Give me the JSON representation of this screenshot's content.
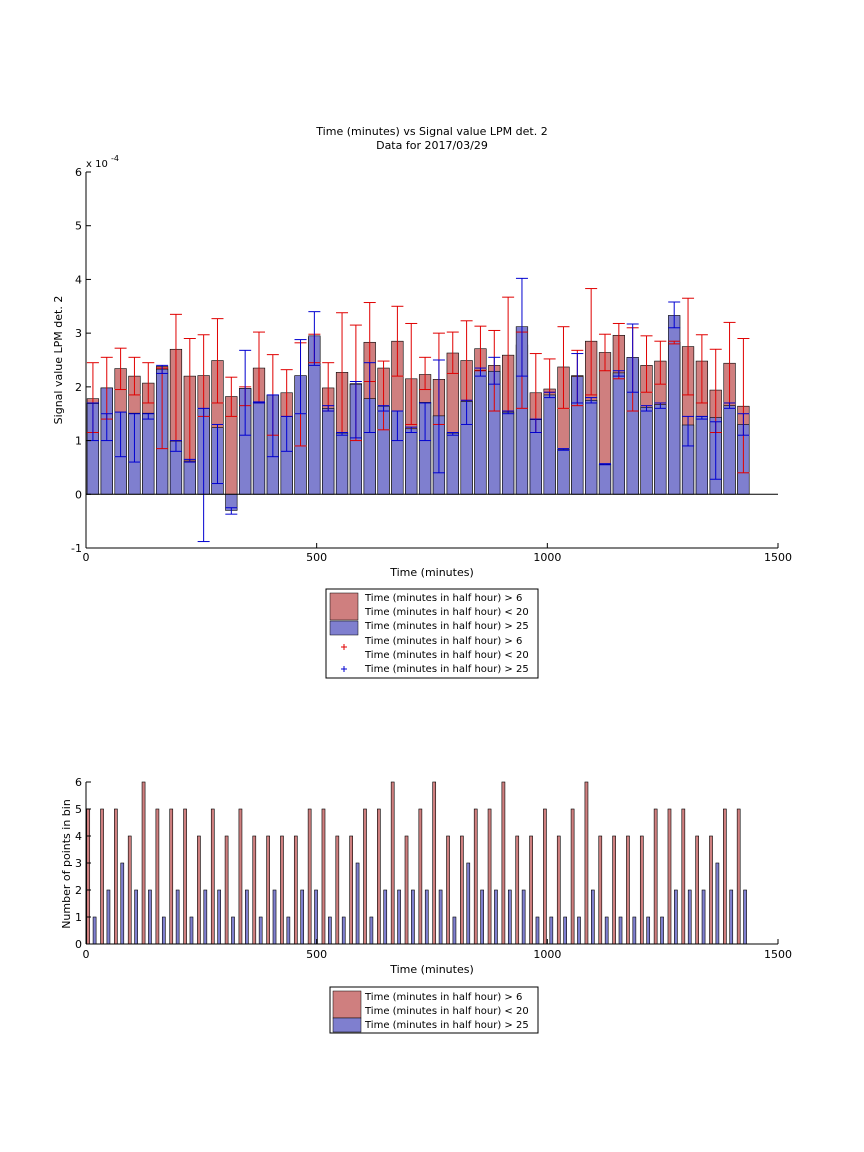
{
  "colors": {
    "red_fill": "#cf7f7f",
    "blue_fill": "#7f7fcf",
    "red_err": "#e00000",
    "blue_err": "#0000d0",
    "axis": "#000000"
  },
  "legend_labels": {
    "a": "Time (minutes in half hour) > 6",
    "b": "Time (minutes in half hour) < 20",
    "c": "Time (minutes in half hour) > 25"
  },
  "chart_data": [
    {
      "type": "bar",
      "title": "Time (minutes) vs Signal value LPM det. 2",
      "subtitle": "Data for 2017/03/29",
      "xlabel": "Time (minutes)",
      "ylabel": "Signal value LPM det. 2",
      "y_exponent": "x 10",
      "y_exponent_power": "-4",
      "xlim": [
        0,
        1500
      ],
      "ylim": [
        -1,
        6
      ],
      "xticks": [
        "0",
        "500",
        "1000",
        "1500"
      ],
      "yticks": [
        "-1",
        "0",
        "1",
        "2",
        "3",
        "4",
        "5",
        "6"
      ],
      "x": [
        15,
        45,
        75,
        105,
        135,
        165,
        195,
        225,
        255,
        285,
        315,
        345,
        375,
        405,
        435,
        465,
        495,
        525,
        555,
        585,
        615,
        645,
        675,
        705,
        735,
        765,
        795,
        825,
        855,
        885,
        915,
        945,
        975,
        1005,
        1035,
        1065,
        1095,
        1125,
        1155,
        1185,
        1215,
        1245,
        1275,
        1305,
        1335,
        1365,
        1395,
        1425
      ],
      "series": [
        {
          "values": [
            1.78,
            1.98,
            2.34,
            2.2,
            2.07,
            2.38,
            2.7,
            2.2,
            2.21,
            2.49,
            1.82,
            1.97,
            2.35,
            1.84,
            1.89,
            2.2,
            2.92,
            1.98,
            2.27,
            2.06,
            2.83,
            2.35,
            2.85,
            2.15,
            2.23,
            2.14,
            2.63,
            2.49,
            2.71,
            2.4,
            2.59,
            2.78,
            1.89,
            1.96,
            2.37,
            2.21,
            2.85,
            2.64,
            2.96,
            2.51,
            2.4,
            2.48,
            2.83,
            2.75,
            2.48,
            1.94,
            2.44,
            1.64
          ],
          "err_low": [
            1.15,
            1.4,
            1.95,
            1.85,
            1.7,
            0.85,
            1.0,
            0.6,
            1.45,
            1.7,
            1.45,
            1.65,
            1.7,
            1.1,
            1.45,
            0.9,
            2.45,
            1.55,
            1.15,
            1.0,
            2.1,
            1.2,
            2.2,
            1.3,
            1.95,
            1.3,
            2.25,
            1.75,
            2.3,
            1.55,
            1.55,
            1.6,
            1.15,
            1.9,
            1.6,
            1.65,
            1.85,
            2.3,
            2.15,
            1.55,
            1.9,
            2.05,
            2.8,
            1.85,
            1.7,
            1.15,
            1.7,
            0.4
          ],
          "err_high": [
            2.45,
            2.55,
            2.72,
            2.55,
            2.45,
            2.35,
            3.35,
            2.9,
            2.97,
            3.27,
            2.18,
            2.0,
            3.02,
            2.6,
            2.32,
            2.82,
            2.98,
            2.45,
            3.38,
            3.15,
            3.57,
            2.48,
            3.5,
            3.18,
            2.55,
            3.0,
            3.02,
            3.23,
            3.13,
            3.05,
            3.67,
            3.02,
            2.62,
            2.52,
            3.12,
            2.68,
            3.83,
            2.98,
            3.18,
            3.1,
            2.95,
            2.85,
            2.85,
            3.65,
            2.97,
            2.7,
            3.2,
            2.9
          ]
        },
        {
          "values": [
            1.69,
            1.98,
            1.53,
            1.51,
            1.51,
            2.33,
            0.99,
            0.62,
            1.6,
            1.24,
            -0.3,
            1.97,
            1.71,
            1.85,
            1.45,
            2.21,
            2.95,
            1.6,
            1.14,
            2.05,
            1.78,
            1.64,
            1.55,
            1.22,
            1.71,
            1.46,
            1.14,
            1.73,
            2.31,
            2.29,
            1.53,
            3.12,
            1.39,
            1.85,
            0.84,
            2.19,
            1.75,
            0.56,
            2.26,
            2.55,
            1.62,
            1.67,
            3.33,
            1.29,
            1.45,
            1.43,
            1.65,
            1.3
          ],
          "err_low": [
            1.0,
            1.0,
            0.7,
            0.6,
            1.4,
            2.25,
            0.8,
            0.6,
            -0.88,
            0.2,
            -0.37,
            1.1,
            1.7,
            0.7,
            0.8,
            1.5,
            2.4,
            1.55,
            1.1,
            1.05,
            1.15,
            1.55,
            1.0,
            1.15,
            1.0,
            0.4,
            1.1,
            1.3,
            2.2,
            2.05,
            1.5,
            2.2,
            1.15,
            1.8,
            0.82,
            1.7,
            1.7,
            0.55,
            2.2,
            1.9,
            1.55,
            1.6,
            3.1,
            0.9,
            1.4,
            0.28,
            1.6,
            1.1
          ],
          "err_high": [
            1.7,
            1.5,
            1.53,
            1.5,
            1.5,
            2.4,
            1.0,
            0.65,
            1.6,
            1.3,
            -0.25,
            2.68,
            1.72,
            1.85,
            1.45,
            2.88,
            3.4,
            1.65,
            1.15,
            2.1,
            2.45,
            1.65,
            1.55,
            1.25,
            1.7,
            2.5,
            1.15,
            1.75,
            2.35,
            2.55,
            1.55,
            4.02,
            1.4,
            1.9,
            0.85,
            2.62,
            1.8,
            0.57,
            2.3,
            3.17,
            1.65,
            1.7,
            3.58,
            1.45,
            1.45,
            1.35,
            1.7,
            1.5
          ]
        }
      ]
    },
    {
      "type": "bar",
      "xlabel": "Time (minutes)",
      "ylabel": "Number of points in bin",
      "xlim": [
        0,
        1500
      ],
      "ylim": [
        0,
        6
      ],
      "xticks": [
        "0",
        "500",
        "1000",
        "1500"
      ],
      "yticks": [
        "0",
        "1",
        "2",
        "3",
        "4",
        "5",
        "6"
      ],
      "x": [
        15,
        45,
        75,
        105,
        135,
        165,
        195,
        225,
        255,
        285,
        315,
        345,
        375,
        405,
        435,
        465,
        495,
        525,
        555,
        585,
        615,
        645,
        675,
        705,
        735,
        765,
        795,
        825,
        855,
        885,
        915,
        945,
        975,
        1005,
        1035,
        1065,
        1095,
        1125,
        1155,
        1185,
        1215,
        1245,
        1275,
        1305,
        1335,
        1365,
        1395,
        1425
      ],
      "series": [
        {
          "values": [
            5,
            5,
            5,
            4,
            6,
            5,
            5,
            5,
            4,
            5,
            4,
            5,
            4,
            4,
            4,
            4,
            5,
            5,
            4,
            4,
            5,
            5,
            6,
            4,
            5,
            6,
            4,
            4,
            5,
            5,
            6,
            4,
            4,
            5,
            4,
            5,
            6,
            4,
            4,
            4,
            4,
            5,
            5,
            5,
            4,
            4,
            5,
            5
          ]
        },
        {
          "values": [
            1,
            2,
            3,
            2,
            2,
            1,
            2,
            1,
            2,
            2,
            1,
            2,
            1,
            2,
            1,
            2,
            2,
            1,
            1,
            3,
            1,
            2,
            2,
            2,
            2,
            2,
            1,
            3,
            2,
            2,
            2,
            2,
            1,
            1,
            1,
            1,
            2,
            1,
            1,
            1,
            1,
            1,
            2,
            2,
            2,
            3,
            2,
            2
          ]
        }
      ]
    }
  ]
}
